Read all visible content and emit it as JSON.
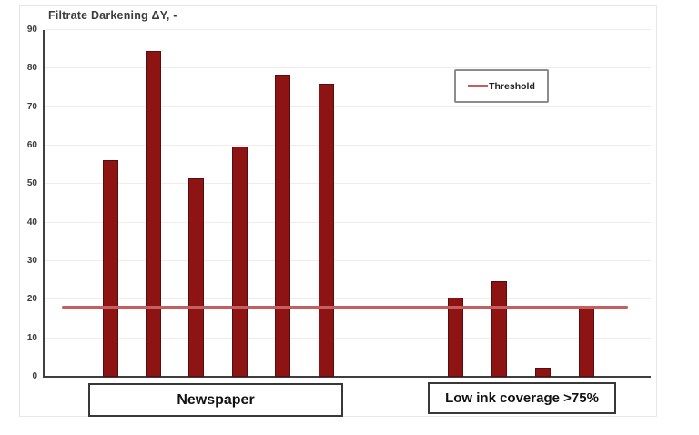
{
  "chart_data": {
    "type": "bar",
    "title": "Filtrate Darkening ΔY, -",
    "xlabel": "",
    "ylabel": "Filtrate Darkening ΔY, -",
    "ylim": [
      0,
      90
    ],
    "ytick_step": 10,
    "yticks": [
      0,
      10,
      20,
      30,
      40,
      50,
      60,
      70,
      80,
      90
    ],
    "grid": true,
    "bar_color": "#8E1313",
    "bar_border_color": "#570D0D",
    "groups": [
      {
        "label": "Newspaper",
        "values": [
          56.3,
          84.5,
          51.5,
          59.7,
          78.5,
          76.0
        ]
      },
      {
        "label": "Low ink coverage >75%",
        "values": [
          20.5,
          24.7,
          2.3,
          18.5
        ]
      }
    ],
    "threshold": {
      "label": "Threshold",
      "value": 18,
      "color": "#C55F5F"
    },
    "legend": {
      "position": "upper-right",
      "entries": [
        {
          "label": "Threshold",
          "marker": "line",
          "color": "#C55F5F"
        }
      ]
    }
  }
}
